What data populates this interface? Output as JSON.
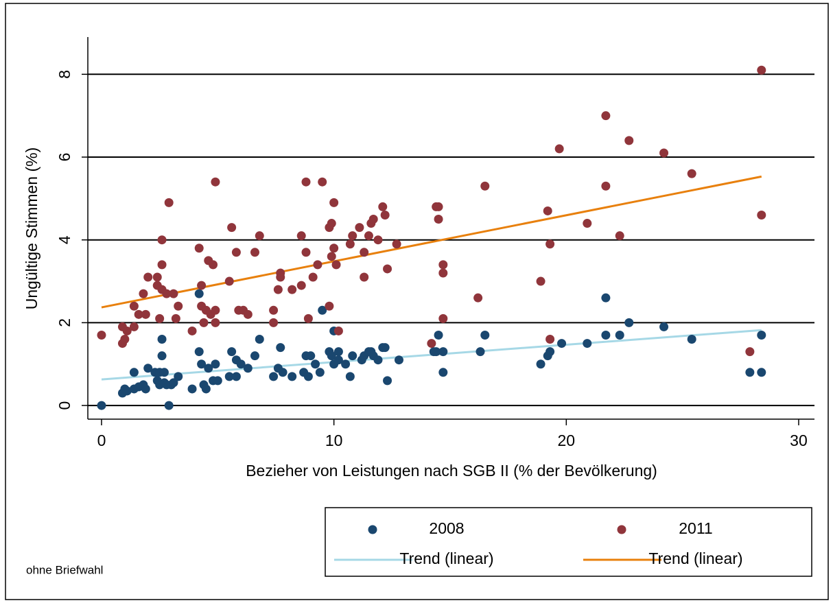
{
  "chart_data": {
    "type": "scatter",
    "xlabel": "Bezieher von Leistungen nach SGB II (% der Bevölkerung)",
    "ylabel": "Ungültige Stimmen (%)",
    "note": "ohne Briefwahl",
    "xlim": [
      -0.59,
      30.68
    ],
    "ylim": [
      -0.33,
      8.9
    ],
    "xticks": [
      0,
      10,
      20,
      30
    ],
    "yticks": [
      0,
      2,
      4,
      6,
      8
    ],
    "grid": true,
    "legend": "bottom-right",
    "series": [
      {
        "name": "2008",
        "type": "scatter",
        "color": "#1a476f",
        "x": [
          0,
          0.9,
          1.0,
          1.1,
          1.4,
          1.4,
          1.6,
          1.8,
          1.9,
          2.0,
          2.3,
          2.4,
          2.5,
          2.5,
          2.6,
          2.6,
          2.7,
          2.7,
          2.8,
          2.9,
          3.0,
          3.1,
          3.3,
          3.9,
          4.2,
          4.2,
          4.3,
          4.4,
          4.5,
          4.6,
          4.8,
          4.9,
          5.0,
          5.5,
          5.6,
          5.8,
          5.8,
          6.0,
          6.3,
          6.6,
          6.8,
          7.4,
          7.6,
          7.7,
          7.8,
          8.2,
          8.7,
          8.8,
          8.9,
          9.0,
          9.2,
          9.4,
          9.5,
          9.8,
          9.9,
          10.0,
          10.0,
          10.2,
          10.2,
          10.5,
          10.7,
          10.8,
          11.2,
          11.3,
          11.5,
          11.6,
          11.7,
          11.9,
          12.1,
          12.2,
          12.3,
          12.8,
          14.3,
          14.4,
          14.5,
          14.7,
          14.7,
          16.3,
          16.5,
          18.9,
          19.2,
          19.3,
          19.8,
          20.9,
          21.7,
          21.7,
          22.3,
          22.7,
          24.2,
          25.4,
          27.9,
          28.4,
          28.4
        ],
        "values": [
          0,
          0.3,
          0.4,
          0.35,
          0.8,
          0.4,
          0.45,
          0.5,
          0.4,
          0.9,
          0.8,
          0.6,
          0.5,
          0.8,
          1.6,
          1.2,
          0.8,
          0.55,
          0.5,
          0,
          0.5,
          0.55,
          0.7,
          0.4,
          1.3,
          2.7,
          1.0,
          0.5,
          0.4,
          0.9,
          0.6,
          1.0,
          0.6,
          0.7,
          1.3,
          0.7,
          1.1,
          1.0,
          0.9,
          1.2,
          1.6,
          0.7,
          0.9,
          1.4,
          0.8,
          0.7,
          0.8,
          1.2,
          0.7,
          1.2,
          1.0,
          0.8,
          2.3,
          1.3,
          1.2,
          1.8,
          1.0,
          1.1,
          1.3,
          1.0,
          0.7,
          1.2,
          1.1,
          1.2,
          1.3,
          1.3,
          1.2,
          1.1,
          1.4,
          1.4,
          0.6,
          1.1,
          1.3,
          1.3,
          1.7,
          0.8,
          1.3,
          1.3,
          1.7,
          1.0,
          1.2,
          1.3,
          1.5,
          1.5,
          2.6,
          1.7,
          1.7,
          2.0,
          1.9,
          1.6,
          0.8,
          1.7,
          0.8
        ]
      },
      {
        "name": "2011",
        "type": "scatter",
        "color": "#90353b",
        "x": [
          0,
          0.9,
          0.9,
          1.0,
          1.1,
          1.4,
          1.4,
          1.6,
          1.8,
          1.9,
          2.0,
          2.4,
          2.4,
          2.5,
          2.6,
          2.6,
          2.6,
          2.8,
          2.9,
          3.1,
          3.2,
          3.3,
          3.9,
          4.2,
          4.3,
          4.3,
          4.4,
          4.5,
          4.6,
          4.7,
          4.8,
          4.9,
          4.9,
          4.9,
          5.5,
          5.6,
          5.8,
          5.9,
          6.1,
          6.3,
          6.6,
          6.8,
          7.4,
          7.4,
          7.6,
          7.7,
          7.7,
          8.2,
          8.6,
          8.6,
          8.8,
          8.8,
          8.9,
          9.1,
          9.3,
          9.5,
          9.8,
          9.8,
          9.9,
          9.9,
          10.0,
          10.0,
          10.1,
          10.2,
          10.7,
          10.8,
          11.1,
          11.3,
          11.3,
          11.5,
          11.6,
          11.7,
          11.9,
          12.1,
          12.2,
          12.3,
          12.7,
          14.2,
          14.4,
          14.5,
          14.5,
          14.7,
          14.7,
          14.7,
          16.2,
          16.5,
          18.9,
          19.2,
          19.3,
          19.3,
          19.7,
          20.9,
          21.7,
          21.7,
          22.3,
          22.7,
          24.2,
          25.4,
          27.9,
          28.4,
          28.4
        ],
        "values": [
          1.7,
          1.9,
          1.5,
          1.6,
          1.8,
          2.4,
          1.9,
          2.2,
          2.7,
          2.2,
          3.1,
          3.1,
          2.9,
          2.1,
          4.0,
          3.4,
          2.8,
          2.7,
          4.9,
          2.7,
          2.1,
          2.4,
          1.8,
          3.8,
          2.9,
          2.4,
          2.0,
          2.3,
          3.5,
          2.2,
          3.4,
          5.4,
          2.3,
          2.0,
          3.0,
          4.3,
          3.7,
          2.3,
          2.3,
          2.2,
          3.7,
          4.1,
          2.3,
          2.0,
          2.8,
          3.2,
          3.1,
          2.8,
          2.9,
          4.1,
          5.4,
          3.7,
          2.1,
          3.1,
          3.4,
          5.4,
          2.4,
          4.3,
          3.6,
          4.4,
          4.9,
          3.8,
          3.4,
          1.8,
          3.9,
          4.1,
          4.3,
          3.7,
          3.1,
          4.1,
          4.4,
          4.5,
          4.0,
          4.8,
          4.6,
          3.3,
          3.9,
          1.5,
          4.8,
          4.5,
          4.8,
          3.4,
          3.2,
          2.1,
          2.6,
          5.3,
          3.0,
          4.7,
          3.9,
          1.6,
          6.2,
          4.4,
          7.0,
          5.3,
          4.1,
          6.4,
          6.1,
          5.6,
          1.3,
          8.1,
          4.6
        ]
      },
      {
        "name": "Trend (linear)",
        "type": "line",
        "color": "#a6d8e6",
        "x": [
          0,
          28.4
        ],
        "values": [
          0.63,
          1.82
        ]
      },
      {
        "name": "Trend (linear)",
        "type": "line",
        "color": "#e8800d",
        "x": [
          0,
          28.4
        ],
        "values": [
          2.37,
          5.53
        ]
      }
    ]
  }
}
